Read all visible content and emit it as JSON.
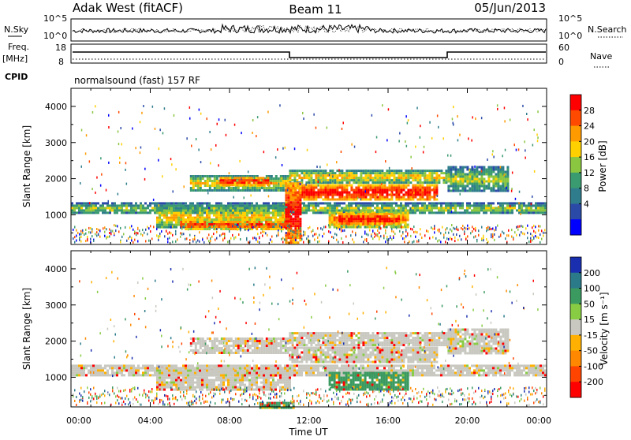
{
  "header": {
    "radar": "Adak West (fitACF)",
    "beam": "Beam 11",
    "date": "05/Jun/2013"
  },
  "status_panels": {
    "nsky_label": "N.Sky",
    "nsky_ticks": [
      "10^5",
      "10^0"
    ],
    "nsearch_label": "N.Search",
    "nsearch_ticks": [
      "10^5",
      "10^0"
    ],
    "freq_label": "Freq.",
    "freq_unit": "[MHz]",
    "freq_ticks": [
      "18",
      "8"
    ],
    "nave_label": "Nave",
    "nave_ticks": [
      "60",
      "0"
    ],
    "cpid_label": "CPID",
    "cpid_value": "normalsound (fast) 157 RF"
  },
  "chart_data": [
    {
      "type": "heatmap",
      "name": "power",
      "ylabel": "Slant Range [km]",
      "yticks": [
        1000,
        2000,
        3000,
        4000
      ],
      "ylim": [
        180,
        4500
      ],
      "xlim": [
        0,
        24
      ],
      "colorbar": {
        "label": "Power [dB]",
        "ticks": [
          "28",
          "24",
          "20",
          "16",
          "12",
          "8",
          "4"
        ],
        "colors": [
          "#ff0000",
          "#ff4a00",
          "#ff9a00",
          "#ffd000",
          "#8ac640",
          "#3a9a70",
          "#2f7d8c",
          "#2b4aa8",
          "#0000ff"
        ]
      },
      "bands": [
        {
          "t0": 0.0,
          "t1": 24.0,
          "r0": 1050,
          "r1": 1350,
          "level": 3
        },
        {
          "t0": 4.3,
          "t1": 11.0,
          "r0": 650,
          "r1": 1280,
          "level": 4
        },
        {
          "t0": 5.5,
          "t1": 11.0,
          "r0": 600,
          "r1": 900,
          "level": 6
        },
        {
          "t0": 6.0,
          "t1": 11.0,
          "r0": 1700,
          "r1": 2100,
          "level": 4
        },
        {
          "t0": 7.5,
          "t1": 10.0,
          "r0": 1850,
          "r1": 2050,
          "level": 7
        },
        {
          "t0": 11.0,
          "t1": 19.0,
          "r0": 1900,
          "r1": 2250,
          "level": 4
        },
        {
          "t0": 11.0,
          "t1": 18.5,
          "r0": 1450,
          "r1": 1850,
          "level": 7
        },
        {
          "t0": 13.0,
          "t1": 17.0,
          "r0": 650,
          "r1": 1150,
          "level": 5
        },
        {
          "t0": 13.5,
          "t1": 16.5,
          "r0": 750,
          "r1": 1050,
          "level": 7
        },
        {
          "t0": 19.0,
          "t1": 22.0,
          "r0": 1650,
          "r1": 2350,
          "level": 3
        },
        {
          "t0": 10.8,
          "t1": 11.6,
          "r0": 200,
          "r1": 1900,
          "level": 7
        }
      ]
    },
    {
      "type": "heatmap",
      "name": "velocity",
      "ylabel": "Slant Range [km]",
      "yticks": [
        1000,
        2000,
        3000,
        4000
      ],
      "ylim": [
        180,
        4500
      ],
      "xlim": [
        0,
        24
      ],
      "xticks": [
        "00:00",
        "04:00",
        "08:00",
        "12:00",
        "16:00",
        "20:00",
        "00:00"
      ],
      "xlabel": "Time UT",
      "colorbar": {
        "label": "Velocity [m s⁻¹]",
        "ticks": [
          "200",
          "100",
          "50",
          "15",
          "-15",
          "-50",
          "-100",
          "-200"
        ],
        "colors": [
          "#1a2fb0",
          "#2a7a8a",
          "#3a9a60",
          "#88cc44",
          "#c8c8c0",
          "#ffb000",
          "#ff8800",
          "#ff4400",
          "#ff0000"
        ]
      },
      "bands": [
        {
          "t0": 0.0,
          "t1": 24.0,
          "r0": 1050,
          "r1": 1350,
          "level": 4
        },
        {
          "t0": 4.3,
          "t1": 11.0,
          "r0": 650,
          "r1": 1280,
          "level": 4
        },
        {
          "t0": 6.0,
          "t1": 11.0,
          "r0": 1700,
          "r1": 2100,
          "level": 4
        },
        {
          "t0": 11.0,
          "t1": 19.0,
          "r0": 1900,
          "r1": 2250,
          "level": 4
        },
        {
          "t0": 11.0,
          "t1": 18.5,
          "r0": 1450,
          "r1": 1850,
          "level": 4
        },
        {
          "t0": 13.0,
          "t1": 17.0,
          "r0": 650,
          "r1": 1150,
          "level": 6
        },
        {
          "t0": 19.0,
          "t1": 22.0,
          "r0": 1650,
          "r1": 2350,
          "level": 4
        },
        {
          "t0": 9.5,
          "t1": 11.2,
          "r0": 180,
          "r1": 320,
          "level": 6
        }
      ]
    }
  ]
}
